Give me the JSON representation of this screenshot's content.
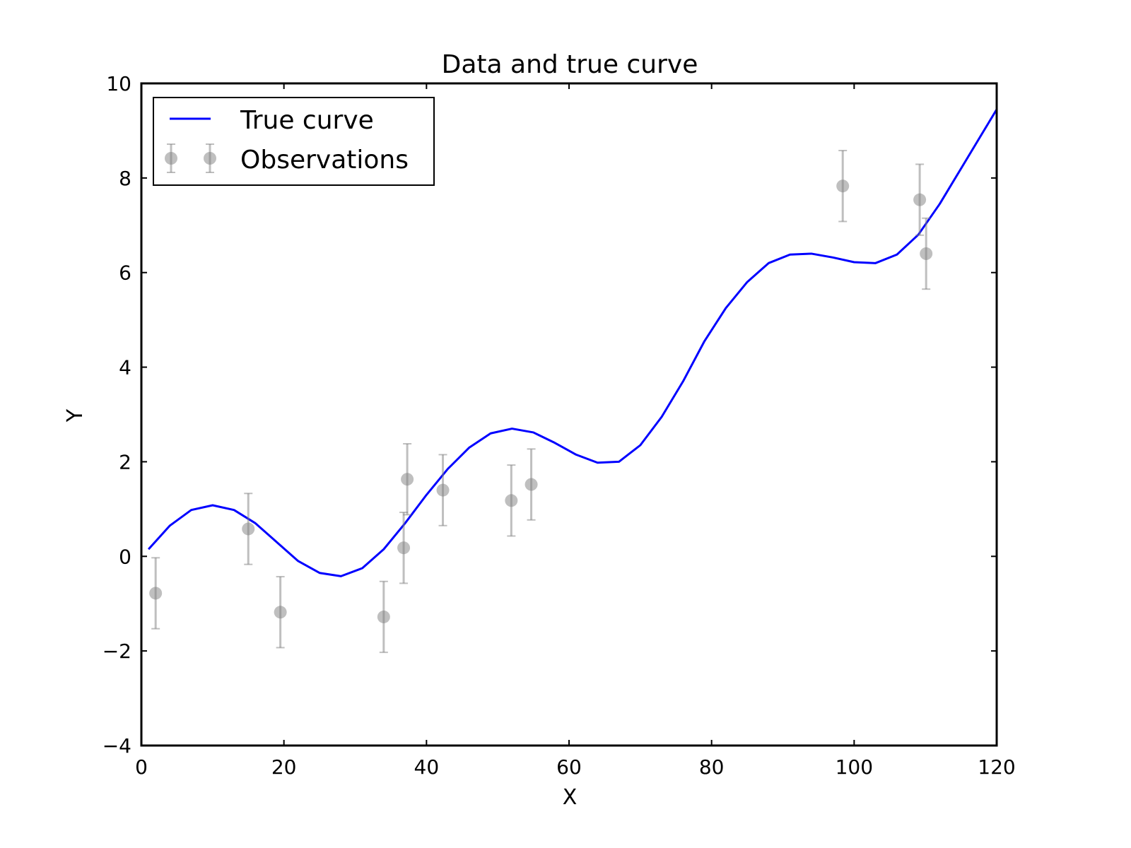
{
  "chart_data": {
    "type": "line",
    "title": "Data and true curve",
    "xlabel": "X",
    "ylabel": "Y",
    "xlim": [
      0,
      120
    ],
    "ylim": [
      -4,
      10
    ],
    "xticks": [
      0,
      20,
      40,
      60,
      80,
      100,
      120
    ],
    "yticks": [
      -4,
      -2,
      0,
      2,
      4,
      6,
      8,
      10
    ],
    "ytick_labels": [
      "−4",
      "−2",
      "0",
      "2",
      "4",
      "6",
      "8",
      "10"
    ],
    "grid": false,
    "legend_position": "top-left",
    "series": [
      {
        "name": "True curve",
        "kind": "line",
        "color": "#0000ff",
        "x": [
          1,
          4,
          7,
          10,
          13,
          16,
          19,
          22,
          25,
          28,
          31,
          34,
          37,
          40,
          43,
          46,
          49,
          52,
          55,
          58,
          61,
          64,
          67,
          70,
          73,
          76,
          79,
          82,
          85,
          88,
          91,
          94,
          97,
          100,
          103,
          106,
          109,
          112,
          115,
          118,
          120
        ],
        "y": [
          0.15,
          0.65,
          0.98,
          1.08,
          0.98,
          0.7,
          0.3,
          -0.1,
          -0.35,
          -0.42,
          -0.25,
          0.15,
          0.7,
          1.3,
          1.85,
          2.3,
          2.6,
          2.7,
          2.62,
          2.4,
          2.15,
          1.98,
          2.0,
          2.35,
          2.95,
          3.7,
          4.55,
          5.25,
          5.8,
          6.2,
          6.38,
          6.4,
          6.32,
          6.22,
          6.2,
          6.38,
          6.8,
          7.45,
          8.2,
          8.95,
          9.45
        ]
      },
      {
        "name": "Observations",
        "kind": "errorbar",
        "color": "#808080",
        "points": [
          {
            "x": 2.0,
            "y": -0.78,
            "err": 0.75
          },
          {
            "x": 15.0,
            "y": 0.58,
            "err": 0.75
          },
          {
            "x": 19.5,
            "y": -1.18,
            "err": 0.75
          },
          {
            "x": 34.0,
            "y": -1.28,
            "err": 0.75
          },
          {
            "x": 36.8,
            "y": 0.18,
            "err": 0.75
          },
          {
            "x": 37.3,
            "y": 1.63,
            "err": 0.75
          },
          {
            "x": 42.3,
            "y": 1.4,
            "err": 0.75
          },
          {
            "x": 51.9,
            "y": 1.18,
            "err": 0.75
          },
          {
            "x": 54.7,
            "y": 1.52,
            "err": 0.75
          },
          {
            "x": 98.4,
            "y": 7.83,
            "err": 0.75
          },
          {
            "x": 109.2,
            "y": 7.54,
            "err": 0.75
          },
          {
            "x": 110.1,
            "y": 6.4,
            "err": 0.75
          }
        ]
      }
    ]
  }
}
